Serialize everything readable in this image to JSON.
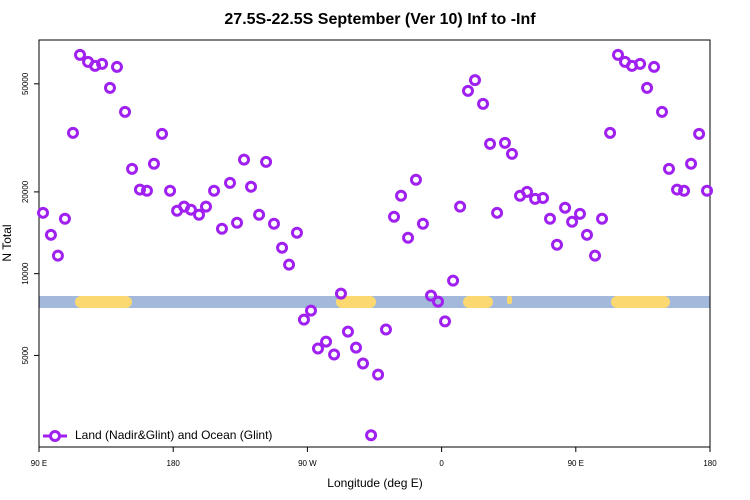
{
  "chart_data": {
    "type": "scatter",
    "title": "27.5S-22.5S September (Ver 10)   Inf to -Inf",
    "x_label": "Longitude (deg E)",
    "y_label": "N Total",
    "log_y": true,
    "legend_loc": "lower left",
    "xlim": [
      90,
      540
    ],
    "xticks": [
      {
        "value": 90,
        "label": "90 E"
      },
      {
        "value": 180,
        "label": "180"
      },
      {
        "value": 270,
        "label": "90 W"
      },
      {
        "value": 360,
        "label": "0"
      },
      {
        "value": 450,
        "label": "90 E"
      },
      {
        "value": 540,
        "label": "180"
      }
    ],
    "ylim": [
      2300,
      72500
    ],
    "yticks": [
      5000,
      10000,
      20000,
      50000
    ],
    "series": [
      {
        "name": "Land (Nadir&Glint) and Ocean (Glint)",
        "color": "#a020f0",
        "x": [
          92.7,
          98,
          102.7,
          107.4,
          112.8,
          117.5,
          122.9,
          127.6,
          132.3,
          137.6,
          142.3,
          147.7,
          152.4,
          157.7,
          162.4,
          167.1,
          172.5,
          177.9,
          182.6,
          187.3,
          191.9,
          197.3,
          202,
          207.4,
          212.7,
          218.1,
          222.8,
          227.5,
          232.2,
          237.6,
          242.3,
          247.6,
          253,
          257.7,
          263,
          267.7,
          272.4,
          277.1,
          282.5,
          287.9,
          292.5,
          297.2,
          302.6,
          307.3,
          312.7,
          317.4,
          322.7,
          328.1,
          332.8,
          337.5,
          342.8,
          347.5,
          352.9,
          357.6,
          362.3,
          367.7,
          372.4,
          377.7,
          382.4,
          387.8,
          392.5,
          397.2,
          402.5,
          407.2,
          412.6,
          417.3,
          422.7,
          428,
          432.7,
          437.4,
          442.8,
          447.5,
          452.8,
          457.5,
          462.9,
          467.6,
          473,
          478.3,
          483,
          487.7,
          493.1,
          497.8,
          502.5,
          507.8,
          512.5,
          517.9,
          522.6,
          527.3,
          532.7,
          538
        ],
        "values": [
          16750,
          13900,
          11650,
          15930,
          33000,
          63900,
          60200,
          58200,
          59200,
          48300,
          57700,
          39400,
          24300,
          20400,
          20200,
          25400,
          32700,
          20200,
          17050,
          17650,
          17200,
          16470,
          17650,
          20200,
          14640,
          21600,
          15400,
          26300,
          20900,
          16470,
          25800,
          15260,
          12460,
          10790,
          14150,
          6770,
          7310,
          5300,
          5620,
          5040,
          8440,
          6120,
          5340,
          4670,
          2540,
          4250,
          6230,
          16200,
          19350,
          13560,
          22170,
          15260,
          8300,
          7890,
          6670,
          9430,
          17650,
          47100,
          51600,
          42200,
          30050,
          16750,
          30300,
          27600,
          19350,
          20000,
          18850,
          19000,
          15930,
          12780,
          17480,
          15520,
          16600,
          13900,
          11650,
          15930,
          33000,
          63900,
          60200,
          58200,
          59200,
          48300,
          57700,
          39400,
          24300,
          20400,
          20200,
          25400,
          32700,
          20200
        ]
      }
    ]
  }
}
